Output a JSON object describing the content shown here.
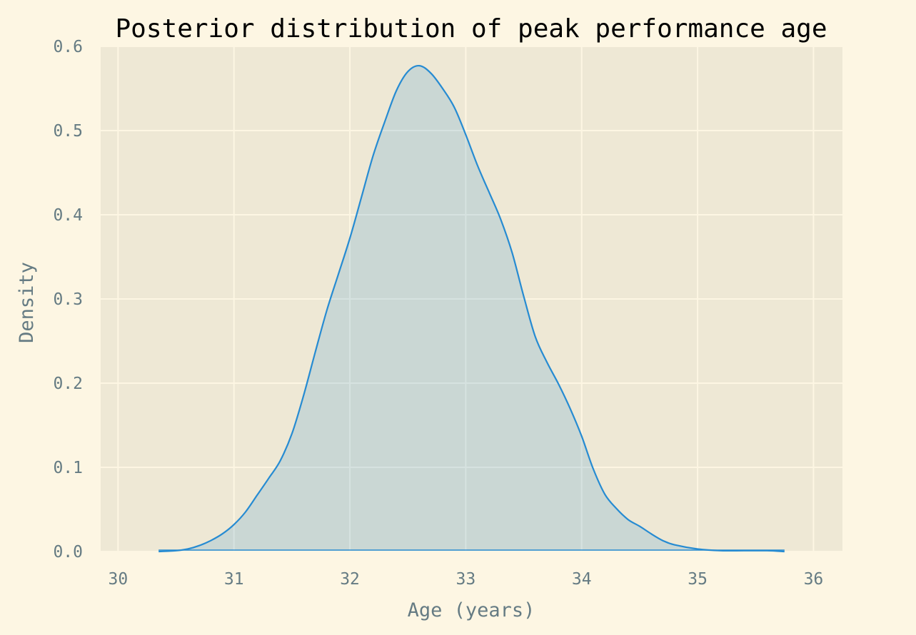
{
  "chart_data": {
    "type": "area",
    "title": "Posterior distribution of peak performance age",
    "xlabel": "Age (years)",
    "ylabel": "Density",
    "xlim": [
      29.85,
      36.25
    ],
    "ylim": [
      0,
      0.6
    ],
    "xticks": [
      "30",
      "31",
      "32",
      "33",
      "34",
      "35",
      "36"
    ],
    "yticks": [
      "0.0",
      "0.1",
      "0.2",
      "0.3",
      "0.4",
      "0.5",
      "0.6"
    ],
    "grid": true,
    "series": [
      {
        "x": [
          30.35,
          30.5,
          30.6,
          30.7,
          30.8,
          30.9,
          31.0,
          31.1,
          31.2,
          31.3,
          31.4,
          31.5,
          31.6,
          31.7,
          31.8,
          31.9,
          32.0,
          32.1,
          32.2,
          32.3,
          32.4,
          32.5,
          32.6,
          32.7,
          32.8,
          32.9,
          33.0,
          33.1,
          33.2,
          33.3,
          33.4,
          33.5,
          33.6,
          33.7,
          33.8,
          33.9,
          34.0,
          34.1,
          34.2,
          34.3,
          34.4,
          34.5,
          34.6,
          34.7,
          34.8,
          35.0,
          35.2,
          35.4,
          35.6,
          35.75
        ],
        "y": [
          0.0,
          0.001,
          0.003,
          0.007,
          0.013,
          0.021,
          0.032,
          0.047,
          0.067,
          0.087,
          0.108,
          0.14,
          0.185,
          0.236,
          0.286,
          0.329,
          0.372,
          0.421,
          0.47,
          0.51,
          0.547,
          0.57,
          0.577,
          0.568,
          0.55,
          0.528,
          0.495,
          0.459,
          0.427,
          0.395,
          0.355,
          0.303,
          0.255,
          0.225,
          0.199,
          0.17,
          0.137,
          0.098,
          0.068,
          0.051,
          0.038,
          0.03,
          0.021,
          0.013,
          0.008,
          0.003,
          0.001,
          0.001,
          0.001,
          0.0
        ]
      }
    ],
    "colors": {
      "line": "#268bd2",
      "fill": "#268bd2",
      "plot_background": "#eee8d5",
      "grid": "#fdf6e3",
      "text": "#657b83",
      "title": "#000000"
    }
  }
}
